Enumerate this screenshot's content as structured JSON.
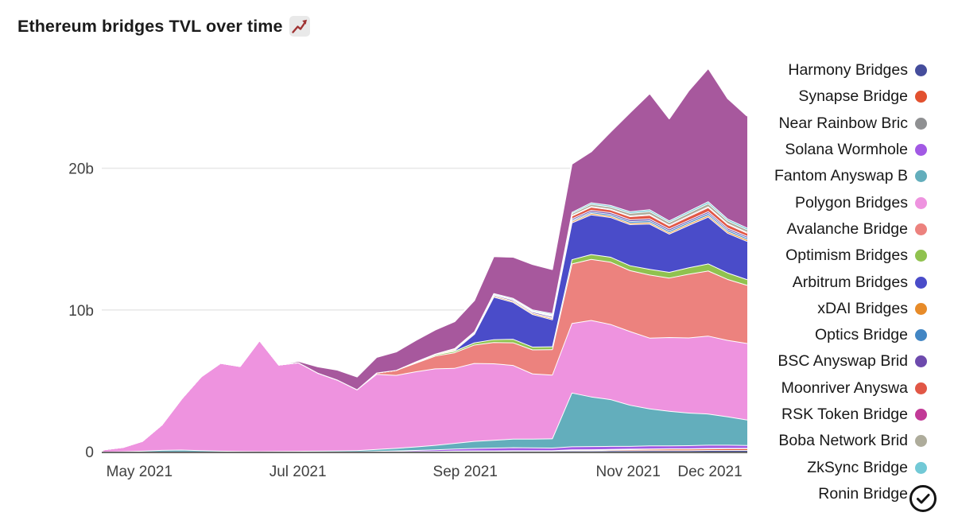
{
  "title": {
    "text": "Ethereum bridges TVL over time",
    "emoji_icon": "chart-increasing",
    "emoji_color": "#a03434"
  },
  "badge": {
    "icon": "check-circle",
    "color": "#151515"
  },
  "axes": {
    "x_tick_labels": [
      "May 2021",
      "Jul 2021",
      "Sep 2021",
      "Nov 2021",
      "Dec 2021"
    ],
    "y_tick_labels": [
      "0",
      "10b",
      "20b"
    ]
  },
  "legend_meta": {
    "position": "right",
    "labels_truncated": true,
    "last_item_clipped_by_bottom_edge": true
  },
  "chart_data": {
    "type": "area",
    "stacked": true,
    "title": "Ethereum bridges TVL over time",
    "unit": "TVL (billions)",
    "grid": "horizontal-only",
    "legend_position": "right",
    "x_range_note": "mid-April 2021 to mid-December 2021, linear time axis",
    "x_ticks": [
      {
        "label": "May 2021",
        "f": 0.056
      },
      {
        "label": "Jul 2021",
        "f": 0.302
      },
      {
        "label": "Sep 2021",
        "f": 0.562
      },
      {
        "label": "Nov 2021",
        "f": 0.815
      },
      {
        "label": "Dec 2021",
        "f": 0.942
      }
    ],
    "y_ticks": [
      {
        "label": "0",
        "v": 0
      },
      {
        "label": "10b",
        "v": 10
      },
      {
        "label": "20b",
        "v": 20
      }
    ],
    "ylim": [
      0,
      28
    ],
    "stacking_order": "first series at bottom",
    "series": [
      {
        "key": "harmony",
        "label": "Harmony Bridges",
        "color": "#454D9C",
        "values": [
          0,
          0,
          0,
          0,
          0,
          0,
          0,
          0,
          0,
          0,
          0,
          0,
          0,
          0,
          0,
          0.02,
          0.03,
          0.04,
          0.05,
          0.06,
          0.06,
          0.07,
          0.07,
          0.07,
          0.08,
          0.08,
          0.09,
          0.09,
          0.1,
          0.1,
          0.1,
          0.11,
          0.11,
          0.11
        ]
      },
      {
        "key": "synapse",
        "label": "Synapse Bridge",
        "color": "#E2512F",
        "values": [
          0,
          0,
          0,
          0,
          0,
          0,
          0,
          0,
          0,
          0,
          0,
          0,
          0,
          0,
          0,
          0,
          0,
          0,
          0,
          0,
          0,
          0,
          0,
          0,
          0.04,
          0.05,
          0.06,
          0.08,
          0.09,
          0.1,
          0.1,
          0.11,
          0.12,
          0.12
        ]
      },
      {
        "key": "near-rainbow",
        "label": "Near Rainbow Bric",
        "color": "#8F9092",
        "values": [
          0,
          0,
          0,
          0,
          0,
          0,
          0,
          0,
          0,
          0,
          0,
          0,
          0,
          0,
          0,
          0,
          0,
          0,
          0.02,
          0.02,
          0.02,
          0.02,
          0.02,
          0.02,
          0.03,
          0.03,
          0.03,
          0.03,
          0.03,
          0.03,
          0.03,
          0.03,
          0.03,
          0.03
        ]
      },
      {
        "key": "solana-wormhole",
        "label": "Solana Wormhole",
        "color": "#A259E4",
        "values": [
          0,
          0,
          0,
          0,
          0,
          0,
          0,
          0,
          0,
          0,
          0,
          0,
          0,
          0,
          0.04,
          0.06,
          0.08,
          0.11,
          0.14,
          0.17,
          0.2,
          0.22,
          0.2,
          0.19,
          0.22,
          0.23,
          0.22,
          0.2,
          0.22,
          0.2,
          0.22,
          0.23,
          0.22,
          0.2
        ]
      },
      {
        "key": "fantom",
        "label": "Fantom Anyswap B",
        "color": "#63AEBC",
        "values": [
          0,
          0.02,
          0.06,
          0.12,
          0.14,
          0.1,
          0.06,
          0.04,
          0.03,
          0.04,
          0.05,
          0.06,
          0.08,
          0.1,
          0.14,
          0.18,
          0.25,
          0.32,
          0.4,
          0.5,
          0.55,
          0.6,
          0.62,
          0.65,
          3.8,
          3.5,
          3.3,
          2.9,
          2.6,
          2.45,
          2.3,
          2.2,
          2.0,
          1.8
        ]
      },
      {
        "key": "polygon",
        "label": "Polygon Bridges",
        "color": "#EE93DF",
        "values": [
          0.15,
          0.3,
          0.7,
          1.8,
          3.6,
          5.2,
          6.2,
          6.0,
          7.85,
          6.1,
          6.25,
          5.5,
          5.0,
          4.3,
          5.3,
          5.15,
          5.3,
          5.4,
          5.3,
          5.5,
          5.4,
          5.2,
          4.6,
          4.5,
          4.9,
          5.4,
          5.3,
          5.2,
          5.0,
          5.2,
          5.3,
          5.5,
          5.4,
          5.4
        ]
      },
      {
        "key": "avalanche",
        "label": "Avalanche Bridge",
        "color": "#EC827E",
        "values": [
          0,
          0,
          0,
          0,
          0,
          0,
          0,
          0,
          0,
          0,
          0,
          0,
          0,
          0,
          0.1,
          0.35,
          0.6,
          0.9,
          1.1,
          1.3,
          1.5,
          1.6,
          1.7,
          1.8,
          4.2,
          4.3,
          4.4,
          4.3,
          4.45,
          4.2,
          4.5,
          4.6,
          4.3,
          4.1
        ]
      },
      {
        "key": "optimism",
        "label": "Optimism Bridges",
        "color": "#90C24F",
        "values": [
          0,
          0,
          0,
          0,
          0,
          0,
          0,
          0,
          0,
          0,
          0,
          0,
          0,
          0,
          0,
          0,
          0.05,
          0.08,
          0.1,
          0.15,
          0.2,
          0.25,
          0.2,
          0.2,
          0.3,
          0.35,
          0.35,
          0.35,
          0.4,
          0.4,
          0.45,
          0.5,
          0.45,
          0.4
        ]
      },
      {
        "key": "arbitrum",
        "label": "Arbitrum Bridges",
        "color": "#4A4CC9",
        "values": [
          0,
          0,
          0,
          0,
          0,
          0,
          0,
          0,
          0,
          0,
          0,
          0,
          0,
          0,
          0,
          0,
          0,
          0,
          0.05,
          0.6,
          3.0,
          2.6,
          2.3,
          1.9,
          2.6,
          2.8,
          2.8,
          2.9,
          3.2,
          2.7,
          3.0,
          3.3,
          2.8,
          2.7
        ]
      },
      {
        "key": "xdai",
        "label": "xDAI Bridges",
        "color": "#E78B29",
        "values": [
          0,
          0,
          0,
          0,
          0,
          0,
          0,
          0,
          0,
          0,
          0,
          0,
          0,
          0,
          0,
          0,
          0.05,
          0.06,
          0.08,
          0.08,
          0.08,
          0.09,
          0.09,
          0.09,
          0.1,
          0.1,
          0.1,
          0.1,
          0.11,
          0.11,
          0.11,
          0.12,
          0.12,
          0.12
        ]
      },
      {
        "key": "optics",
        "label": "Optics Bridge",
        "color": "#4286C4",
        "values": [
          0,
          0,
          0,
          0,
          0,
          0,
          0,
          0,
          0,
          0,
          0,
          0,
          0,
          0,
          0,
          0,
          0,
          0,
          0,
          0,
          0,
          0,
          0,
          0.04,
          0.08,
          0.1,
          0.12,
          0.12,
          0.13,
          0.13,
          0.13,
          0.14,
          0.13,
          0.12
        ]
      },
      {
        "key": "bsc-anyswap",
        "label": "BSC Anyswap Brid",
        "color": "#6D4AAD",
        "values": [
          0,
          0,
          0,
          0,
          0,
          0,
          0,
          0,
          0,
          0,
          0,
          0,
          0,
          0,
          0,
          0,
          0,
          0,
          0.04,
          0.06,
          0.08,
          0.09,
          0.09,
          0.09,
          0.11,
          0.12,
          0.12,
          0.12,
          0.13,
          0.12,
          0.12,
          0.13,
          0.12,
          0.12
        ]
      },
      {
        "key": "moonriver",
        "label": "Moonriver Anyswa",
        "color": "#E15746",
        "values": [
          0,
          0,
          0,
          0,
          0,
          0,
          0,
          0,
          0,
          0,
          0,
          0,
          0,
          0,
          0,
          0,
          0,
          0,
          0,
          0,
          0,
          0,
          0,
          0.06,
          0.18,
          0.22,
          0.2,
          0.22,
          0.25,
          0.22,
          0.25,
          0.28,
          0.25,
          0.22
        ]
      },
      {
        "key": "rsk",
        "label": "RSK Token Bridge",
        "color": "#C23A97",
        "values": [
          0,
          0,
          0,
          0,
          0,
          0,
          0,
          0,
          0,
          0,
          0,
          0,
          0,
          0,
          0,
          0,
          0,
          0,
          0,
          0,
          0.04,
          0.04,
          0.04,
          0.04,
          0.05,
          0.05,
          0.05,
          0.05,
          0.06,
          0.06,
          0.06,
          0.06,
          0.06,
          0.06
        ]
      },
      {
        "key": "boba",
        "label": "Boba Network Brid",
        "color": "#AEAC9B",
        "values": [
          0,
          0,
          0,
          0,
          0,
          0,
          0,
          0,
          0,
          0,
          0,
          0,
          0,
          0,
          0,
          0,
          0,
          0,
          0,
          0,
          0,
          0,
          0.03,
          0.06,
          0.12,
          0.15,
          0.15,
          0.18,
          0.2,
          0.18,
          0.2,
          0.22,
          0.2,
          0.18
        ]
      },
      {
        "key": "zksync",
        "label": "ZkSync Bridge",
        "color": "#72C9D6",
        "values": [
          0,
          0,
          0,
          0,
          0,
          0,
          0,
          0,
          0,
          0,
          0,
          0,
          0,
          0,
          0,
          0,
          0,
          0,
          0.02,
          0.04,
          0.06,
          0.07,
          0.07,
          0.07,
          0.1,
          0.11,
          0.11,
          0.12,
          0.13,
          0.12,
          0.13,
          0.14,
          0.13,
          0.12
        ]
      },
      {
        "key": "ronin",
        "label": "Ronin Bridge",
        "color": "#A7589D",
        "values": [
          0,
          0,
          0,
          0,
          0,
          0,
          0,
          0,
          0,
          0,
          0.1,
          0.45,
          0.7,
          0.9,
          1.1,
          1.3,
          1.5,
          1.7,
          1.9,
          2.2,
          2.6,
          2.9,
          3.2,
          3.1,
          3.4,
          3.6,
          5.2,
          7.0,
          8.2,
          7.2,
          8.5,
          9.4,
          8.5,
          7.9
        ]
      }
    ]
  }
}
